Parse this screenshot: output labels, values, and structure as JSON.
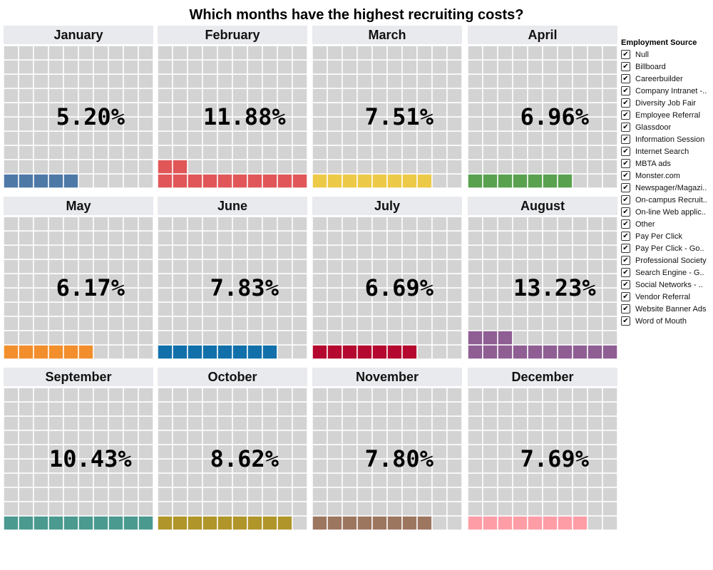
{
  "chart_data": {
    "type": "waffle",
    "title": "Which months have the highest recruiting costs?",
    "panels": [
      {
        "month": "January",
        "label": "5.20%",
        "value": 5.2,
        "color": "#4e79a7"
      },
      {
        "month": "February",
        "label": "11.88%",
        "value": 11.88,
        "color": "#e15759"
      },
      {
        "month": "March",
        "label": "7.51%",
        "value": 7.51,
        "color": "#edc948"
      },
      {
        "month": "April",
        "label": "6.96%",
        "value": 6.96,
        "color": "#59a14f"
      },
      {
        "month": "May",
        "label": "6.17%",
        "value": 6.17,
        "color": "#f28e2b"
      },
      {
        "month": "June",
        "label": "7.83%",
        "value": 7.83,
        "color": "#1170aa"
      },
      {
        "month": "July",
        "label": "6.69%",
        "value": 6.69,
        "color": "#b5082e"
      },
      {
        "month": "August",
        "label": "13.23%",
        "value": 13.23,
        "color": "#8f5e93"
      },
      {
        "month": "September",
        "label": "10.43%",
        "value": 10.43,
        "color": "#4a9a8f"
      },
      {
        "month": "October",
        "label": "8.62%",
        "value": 8.62,
        "color": "#b0952a"
      },
      {
        "month": "November",
        "label": "7.80%",
        "value": 7.8,
        "color": "#9d7660"
      },
      {
        "month": "December",
        "label": "7.69%",
        "value": 7.69,
        "color": "#ff9da7"
      }
    ]
  },
  "legend": {
    "title": "Employment Source",
    "items": [
      "Null",
      "Billboard",
      "Careerbuilder",
      "Company Intranet -..",
      "Diversity Job Fair",
      "Employee Referral",
      "Glassdoor",
      "Information Session",
      "Internet Search",
      "MBTA ads",
      "Monster.com",
      "Newspager/Magazi..",
      "On-campus Recruit..",
      "On-line Web applic..",
      "Other",
      "Pay Per Click",
      "Pay Per Click - Go..",
      "Professional Society",
      "Search Engine - G..",
      "Social Networks - ..",
      "Vendor Referral",
      "Website Banner Ads",
      "Word of Mouth"
    ],
    "checked": true
  },
  "colors": {
    "empty_cell": "#d3d3d3",
    "header_bg": "#e9eaee",
    "grid_line": "#ffffff"
  }
}
